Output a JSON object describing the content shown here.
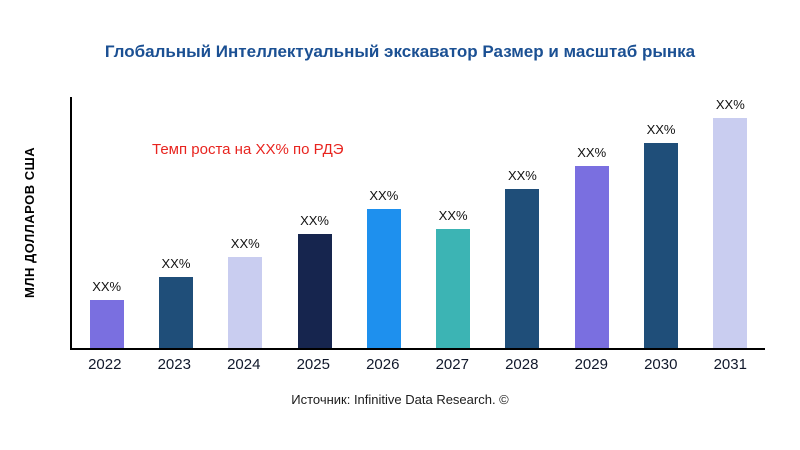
{
  "chart_data": {
    "type": "bar",
    "title": "Глобальный Интеллектуальный экскаватор Размер и масштаб рынка",
    "ylabel": "МЛН ДОЛЛАРОВ США",
    "xlabel": "",
    "annotation": "Темп роста на XX% по РДЭ",
    "source": "Источник: Infinitive Data Research. ©",
    "categories": [
      "2022",
      "2023",
      "2024",
      "2025",
      "2026",
      "2027",
      "2028",
      "2029",
      "2030",
      "2031"
    ],
    "values": [
      19,
      28,
      36,
      45,
      55,
      47,
      63,
      72,
      81,
      91
    ],
    "bar_labels": [
      "XX%",
      "XX%",
      "XX%",
      "XX%",
      "XX%",
      "XX%",
      "XX%",
      "XX%",
      "XX%",
      "XX%"
    ],
    "colors": [
      "#7a6fe0",
      "#1f4e79",
      "#c9cdf0",
      "#16254e",
      "#1e90ee",
      "#3cb4b4",
      "#1f4e79",
      "#7a6fe0",
      "#1f4e79",
      "#c9cdf0"
    ],
    "ylim": [
      0,
      100
    ],
    "grid": false,
    "legend": false,
    "annotation_color": "#e8241f",
    "title_color": "#1b5093"
  }
}
